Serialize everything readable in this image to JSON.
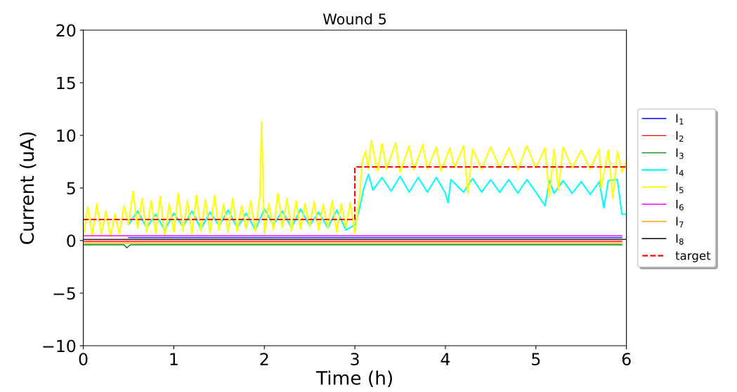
{
  "chart_data": {
    "type": "line",
    "title": "Wound 5",
    "xlabel": "Time (h)",
    "ylabel": "Current (uA)",
    "xlim": [
      0,
      6
    ],
    "ylim": [
      -10,
      20
    ],
    "xticks": [
      0,
      1,
      2,
      3,
      4,
      5,
      6
    ],
    "yticks": [
      {
        "value": -10,
        "label": "−10"
      },
      {
        "value": -5,
        "label": "−5"
      },
      0,
      5,
      10,
      15,
      20
    ],
    "grid": false,
    "legend": "right",
    "marker": "none",
    "series": [
      {
        "name": "I$_{1}$",
        "color": "#0000ff",
        "x": [
          0.5,
          1,
          2,
          3,
          4,
          5,
          5.95
        ],
        "values": [
          0.28,
          0.28,
          0.28,
          0.28,
          0.28,
          0.28,
          0.28
        ]
      },
      {
        "name": "I$_{2}$",
        "color": "#ff0000",
        "x": [
          0,
          1,
          2,
          3,
          4,
          5,
          5.95
        ],
        "values": [
          -0.06,
          -0.06,
          -0.06,
          -0.06,
          -0.06,
          -0.06,
          -0.06
        ]
      },
      {
        "name": "I$_{3}$",
        "color": "#008000",
        "x": [
          0,
          0.45,
          0.48,
          0.52,
          1,
          2,
          3,
          4,
          5,
          5.95
        ],
        "values": [
          -0.4,
          -0.4,
          -0.7,
          -0.4,
          -0.4,
          -0.4,
          -0.4,
          -0.4,
          -0.4,
          -0.4
        ]
      },
      {
        "name": "I$_{4}$",
        "color": "#00ffff",
        "x": [
          0.5,
          0.6,
          0.7,
          0.8,
          0.9,
          1.0,
          1.1,
          1.2,
          1.3,
          1.4,
          1.5,
          1.6,
          1.7,
          1.8,
          1.9,
          2.0,
          2.1,
          2.2,
          2.3,
          2.4,
          2.5,
          2.6,
          2.7,
          2.8,
          2.9,
          3.0,
          3.05,
          3.1,
          3.15,
          3.2,
          3.3,
          3.4,
          3.5,
          3.6,
          3.7,
          3.8,
          3.9,
          4.0,
          4.03,
          4.06,
          4.2,
          4.3,
          4.4,
          4.5,
          4.6,
          4.7,
          4.8,
          4.9,
          5.0,
          5.1,
          5.15,
          5.2,
          5.3,
          5.4,
          5.5,
          5.6,
          5.7,
          5.75,
          5.8,
          5.9,
          5.95,
          6.0
        ],
        "values": [
          1.5,
          2.8,
          1.2,
          2.5,
          1.0,
          2.6,
          1.3,
          2.8,
          1.1,
          2.7,
          1.4,
          2.9,
          1.2,
          2.6,
          1.0,
          3.0,
          1.5,
          2.8,
          1.2,
          3.0,
          1.4,
          2.7,
          1.2,
          2.9,
          1.0,
          1.5,
          3.0,
          5.0,
          6.3,
          4.8,
          6.0,
          4.7,
          6.1,
          4.6,
          6.0,
          4.6,
          6.0,
          4.5,
          3.6,
          5.8,
          4.6,
          5.9,
          4.6,
          5.8,
          4.6,
          5.8,
          4.5,
          5.8,
          4.6,
          3.3,
          5.7,
          4.5,
          5.7,
          4.5,
          5.6,
          4.4,
          5.6,
          3.1,
          5.7,
          5.8,
          2.5,
          2.5
        ]
      },
      {
        "name": "I$_{5}$",
        "color": "#ffff00",
        "x": [
          0,
          0.05,
          0.1,
          0.15,
          0.2,
          0.25,
          0.3,
          0.35,
          0.4,
          0.45,
          0.5,
          0.55,
          0.6,
          0.65,
          0.7,
          0.75,
          0.8,
          0.85,
          0.9,
          0.95,
          1.0,
          1.05,
          1.1,
          1.15,
          1.2,
          1.25,
          1.3,
          1.35,
          1.4,
          1.45,
          1.5,
          1.55,
          1.6,
          1.65,
          1.7,
          1.75,
          1.8,
          1.85,
          1.9,
          1.95,
          1.97,
          2.0,
          2.05,
          2.1,
          2.15,
          2.2,
          2.25,
          2.3,
          2.35,
          2.4,
          2.45,
          2.5,
          2.55,
          2.6,
          2.65,
          2.7,
          2.75,
          2.8,
          2.85,
          2.9,
          2.95,
          3.0,
          3.05,
          3.08,
          3.12,
          3.15,
          3.18,
          3.25,
          3.3,
          3.35,
          3.45,
          3.5,
          3.6,
          3.65,
          3.75,
          3.8,
          3.9,
          3.95,
          4.05,
          4.1,
          4.2,
          4.25,
          4.3,
          4.4,
          4.5,
          4.6,
          4.7,
          4.8,
          4.9,
          5.0,
          5.1,
          5.15,
          5.2,
          5.25,
          5.3,
          5.4,
          5.5,
          5.6,
          5.7,
          5.72,
          5.8,
          5.85,
          5.9,
          5.95,
          6.0
        ],
        "values": [
          0.3,
          3.2,
          0.5,
          3.5,
          0.6,
          2.8,
          0.4,
          2.5,
          0.6,
          3.3,
          1.5,
          4.7,
          1.2,
          4.0,
          0.8,
          3.8,
          0.7,
          4.2,
          0.4,
          3.5,
          0.8,
          4.5,
          0.9,
          3.8,
          0.6,
          4.3,
          0.9,
          3.9,
          0.7,
          4.3,
          1.0,
          3.5,
          0.8,
          4.0,
          0.9,
          3.3,
          1.1,
          3.8,
          0.9,
          4.2,
          11.3,
          0.6,
          3.5,
          1.0,
          4.5,
          1.2,
          4.0,
          0.9,
          3.8,
          1.1,
          3.5,
          1.3,
          3.7,
          1.0,
          3.4,
          1.2,
          3.8,
          0.8,
          3.5,
          1.2,
          3.6,
          0.7,
          4.0,
          7.5,
          8.5,
          6.8,
          9.5,
          6.6,
          9.2,
          6.8,
          9.3,
          6.5,
          9.0,
          6.7,
          9.1,
          6.8,
          8.9,
          6.6,
          8.8,
          6.9,
          9.0,
          4.5,
          8.7,
          6.8,
          8.9,
          6.9,
          8.8,
          6.7,
          9.0,
          6.9,
          8.8,
          4.2,
          8.7,
          4.8,
          8.9,
          6.9,
          8.6,
          6.8,
          8.7,
          5.0,
          8.6,
          4.0,
          8.5,
          6.5,
          7.5
        ]
      },
      {
        "name": "I$_{6}$",
        "color": "#ff00ff",
        "x": [
          0,
          0.45,
          0.5,
          1,
          2,
          3,
          4,
          5,
          5.95
        ],
        "values": [
          0.45,
          0.45,
          0.45,
          0.45,
          0.45,
          0.45,
          0.45,
          0.45,
          0.45
        ]
      },
      {
        "name": "I$_{7}$",
        "color": "#ffa500",
        "x": [
          0,
          1,
          2,
          3,
          4,
          5,
          5.95
        ],
        "values": [
          -0.23,
          -0.23,
          -0.23,
          -0.23,
          -0.23,
          -0.23,
          -0.23
        ]
      },
      {
        "name": "I$_{8}$",
        "color": "#000000",
        "x": [
          0,
          0.5,
          1,
          2,
          3,
          4,
          5,
          6
        ],
        "values": [
          0.11,
          0.11,
          0.11,
          0.11,
          0.11,
          0.11,
          0.11,
          0.11
        ]
      },
      {
        "name": "target",
        "color": "#ff0000",
        "line_style": "dashed",
        "x": [
          0,
          3,
          3,
          6
        ],
        "values": [
          2,
          2,
          7,
          7
        ]
      }
    ]
  }
}
